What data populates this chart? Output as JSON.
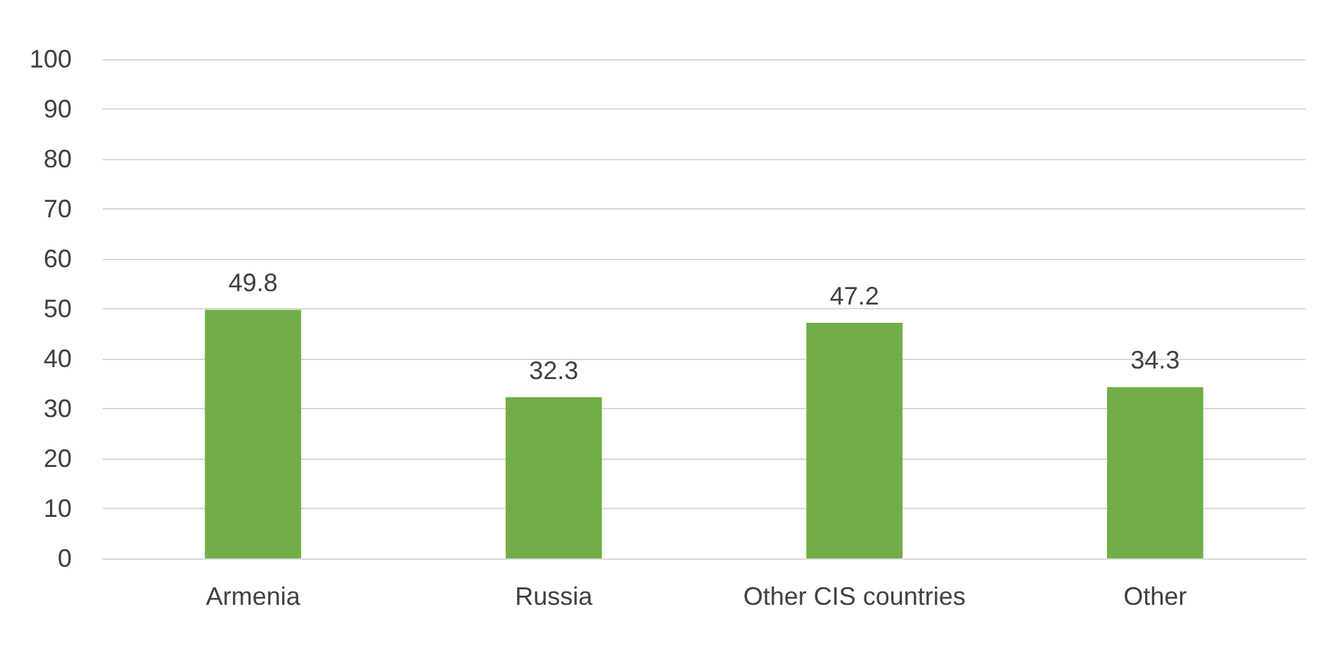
{
  "chart_data": {
    "type": "bar",
    "categories": [
      "Armenia",
      "Russia",
      "Other CIS countries",
      "Other"
    ],
    "values": [
      49.8,
      32.3,
      47.2,
      34.3
    ],
    "color": "#70ad47",
    "ylim": [
      0,
      100
    ],
    "yticks": [
      0,
      10,
      20,
      30,
      40,
      50,
      60,
      70,
      80,
      90,
      100
    ],
    "grid": "y",
    "data_labels": true
  }
}
